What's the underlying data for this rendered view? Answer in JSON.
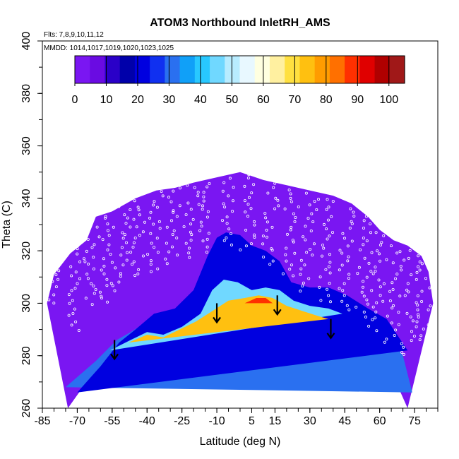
{
  "chart_data": {
    "type": "heatmap",
    "title": "ATOM3 Northbound InletRH_AMS",
    "flights_label": "Flts: 7,8,9,10,11,12",
    "mmdd_label": "MMDD: 1014,1017,1019,1020,1023,1025",
    "xlabel": "Latitude (deg N)",
    "ylabel": "Theta (C)",
    "xlim": [
      -85,
      85
    ],
    "ylim": [
      260,
      400
    ],
    "x_ticks": [
      -85,
      -70,
      -55,
      -40,
      -25,
      -10,
      5,
      15,
      30,
      45,
      60,
      75
    ],
    "y_ticks": [
      260,
      280,
      300,
      320,
      340,
      360,
      380,
      400
    ],
    "colorbar": {
      "ticks": [
        0,
        10,
        20,
        30,
        40,
        50,
        60,
        70,
        80,
        90,
        100
      ],
      "range": [
        0,
        105
      ],
      "colors": [
        "#7a16f2",
        "#6a0be2",
        "#2a00c8",
        "#0000aa",
        "#0000e0",
        "#1030f0",
        "#2a70f0",
        "#10a0f8",
        "#28c8ff",
        "#70d8ff",
        "#b8ecff",
        "#e8f8ff",
        "#ffffe0",
        "#fff0a0",
        "#ffe040",
        "#ffc010",
        "#ff9c00",
        "#ff7000",
        "#ff3000",
        "#e00000",
        "#b00000",
        "#a01818"
      ]
    },
    "lower_boundary": [
      [
        -74,
        260
      ],
      [
        -66,
        270
      ],
      [
        -59,
        276
      ],
      [
        -54,
        281
      ],
      [
        -47,
        285
      ],
      [
        -40,
        288
      ],
      [
        -33,
        287
      ],
      [
        -25,
        290
      ],
      [
        -18,
        291
      ],
      [
        -11,
        293
      ],
      [
        -4,
        296
      ],
      [
        3,
        298
      ],
      [
        9,
        301
      ],
      [
        14,
        300
      ],
      [
        20,
        297
      ],
      [
        26,
        295
      ],
      [
        33,
        293
      ],
      [
        39,
        292
      ],
      [
        45,
        290
      ],
      [
        48,
        288
      ],
      [
        52,
        286
      ],
      [
        55,
        276
      ],
      [
        57,
        285
      ],
      [
        60,
        282
      ],
      [
        64,
        276
      ],
      [
        69,
        266
      ],
      [
        72,
        260
      ]
    ],
    "upper_boundary": [
      [
        -83,
        300
      ],
      [
        -80,
        311
      ],
      [
        -73,
        319
      ],
      [
        -66,
        324
      ],
      [
        -62,
        333
      ],
      [
        -55,
        335
      ],
      [
        -45,
        340
      ],
      [
        -36,
        343
      ],
      [
        -28,
        344
      ],
      [
        -20,
        346
      ],
      [
        -10,
        348
      ],
      [
        0,
        350
      ],
      [
        10,
        347
      ],
      [
        20,
        345
      ],
      [
        30,
        343
      ],
      [
        40,
        341
      ],
      [
        48,
        338
      ],
      [
        55,
        333
      ],
      [
        60,
        328
      ],
      [
        66,
        324
      ],
      [
        72,
        322
      ],
      [
        78,
        318
      ],
      [
        81,
        312
      ],
      [
        83,
        300
      ]
    ],
    "field_bands": [
      {
        "value": 30,
        "points": [
          [
            -75,
            268
          ],
          [
            -62,
            278
          ],
          [
            -53,
            286
          ],
          [
            -47,
            289
          ],
          [
            -40,
            293
          ],
          [
            -32,
            292
          ],
          [
            -23,
            297
          ],
          [
            -15,
            307
          ],
          [
            -10,
            316
          ],
          [
            -5,
            318
          ],
          [
            0,
            317
          ],
          [
            6,
            313
          ],
          [
            12,
            312
          ],
          [
            18,
            310
          ],
          [
            24,
            305
          ],
          [
            33,
            302
          ],
          [
            40,
            302
          ],
          [
            47,
            298
          ],
          [
            54,
            294
          ],
          [
            62,
            290
          ],
          [
            70,
            280
          ],
          [
            74,
            266
          ]
        ]
      },
      {
        "value": 20,
        "points": [
          [
            -70,
            266
          ],
          [
            -60,
            276
          ],
          [
            -52,
            285
          ],
          [
            -45,
            290
          ],
          [
            -37,
            296
          ],
          [
            -28,
            298
          ],
          [
            -20,
            305
          ],
          [
            -14,
            318
          ],
          [
            -10,
            325
          ],
          [
            -6,
            327
          ],
          [
            0,
            326
          ],
          [
            5,
            322
          ],
          [
            11,
            320
          ],
          [
            17,
            316
          ],
          [
            22,
            308
          ],
          [
            30,
            306
          ],
          [
            38,
            306
          ],
          [
            46,
            303
          ],
          [
            55,
            298
          ],
          [
            63,
            294
          ],
          [
            72,
            282
          ]
        ]
      },
      {
        "value": 45,
        "points": [
          [
            -56,
            282
          ],
          [
            -47,
            286
          ],
          [
            -40,
            289
          ],
          [
            -33,
            288
          ],
          [
            -25,
            291
          ],
          [
            -17,
            296
          ],
          [
            -12,
            305
          ],
          [
            -7,
            309
          ],
          [
            -1,
            308
          ],
          [
            5,
            305
          ],
          [
            11,
            306
          ],
          [
            17,
            305
          ],
          [
            23,
            301
          ],
          [
            30,
            299
          ],
          [
            38,
            298
          ],
          [
            44,
            296
          ]
        ]
      },
      {
        "value": 72,
        "points": [
          [
            -48,
            285
          ],
          [
            -40,
            288
          ],
          [
            -33,
            287
          ],
          [
            -26,
            290
          ],
          [
            -19,
            293
          ],
          [
            -12,
            297
          ],
          [
            -5,
            301
          ],
          [
            2,
            302
          ],
          [
            8,
            303
          ],
          [
            14,
            302
          ],
          [
            20,
            299
          ],
          [
            27,
            297
          ],
          [
            34,
            295
          ],
          [
            38,
            294
          ]
        ]
      },
      {
        "value": 90,
        "points": [
          [
            2,
            300
          ],
          [
            7,
            302
          ],
          [
            11,
            302
          ],
          [
            14,
            300
          ]
        ]
      }
    ],
    "arrows": [
      [
        -54,
        286
      ],
      [
        -10,
        300
      ],
      [
        16,
        303
      ],
      [
        39,
        294
      ]
    ],
    "flight_tracks": [
      [
        -80,
        300,
        320
      ],
      [
        -72,
        290,
        325
      ],
      [
        -65,
        300,
        330
      ],
      [
        -58,
        300,
        335
      ],
      [
        -52,
        305,
        338
      ],
      [
        -45,
        310,
        340
      ],
      [
        -38,
        312,
        343
      ],
      [
        -30,
        315,
        344
      ],
      [
        -22,
        318,
        346
      ],
      [
        -15,
        320,
        347
      ],
      [
        -6,
        322,
        348
      ],
      [
        3,
        320,
        349
      ],
      [
        12,
        315,
        347
      ],
      [
        20,
        310,
        345
      ],
      [
        28,
        305,
        343
      ],
      [
        36,
        300,
        341
      ],
      [
        44,
        298,
        338
      ],
      [
        52,
        295,
        334
      ],
      [
        58,
        290,
        330
      ],
      [
        65,
        285,
        326
      ],
      [
        72,
        280,
        322
      ],
      [
        78,
        285,
        318
      ]
    ],
    "grid": false,
    "legend": "top"
  }
}
